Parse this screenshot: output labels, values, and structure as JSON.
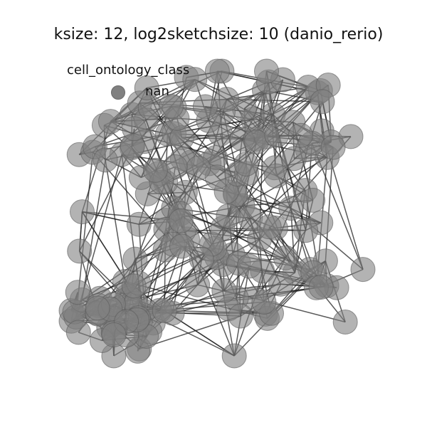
{
  "chart_data": {
    "type": "network",
    "title": "ksize: 12, log2sketchsize: 10 (danio_rerio)",
    "legend": {
      "title": "cell_ontology_class",
      "placement": "top-left",
      "entries": [
        {
          "label": "nan",
          "color": "#808080"
        }
      ]
    },
    "node_color": "#808080",
    "edge_color": "#222222",
    "node_count": 180,
    "edge_count": 520,
    "grid": false,
    "axes_visible": false
  }
}
